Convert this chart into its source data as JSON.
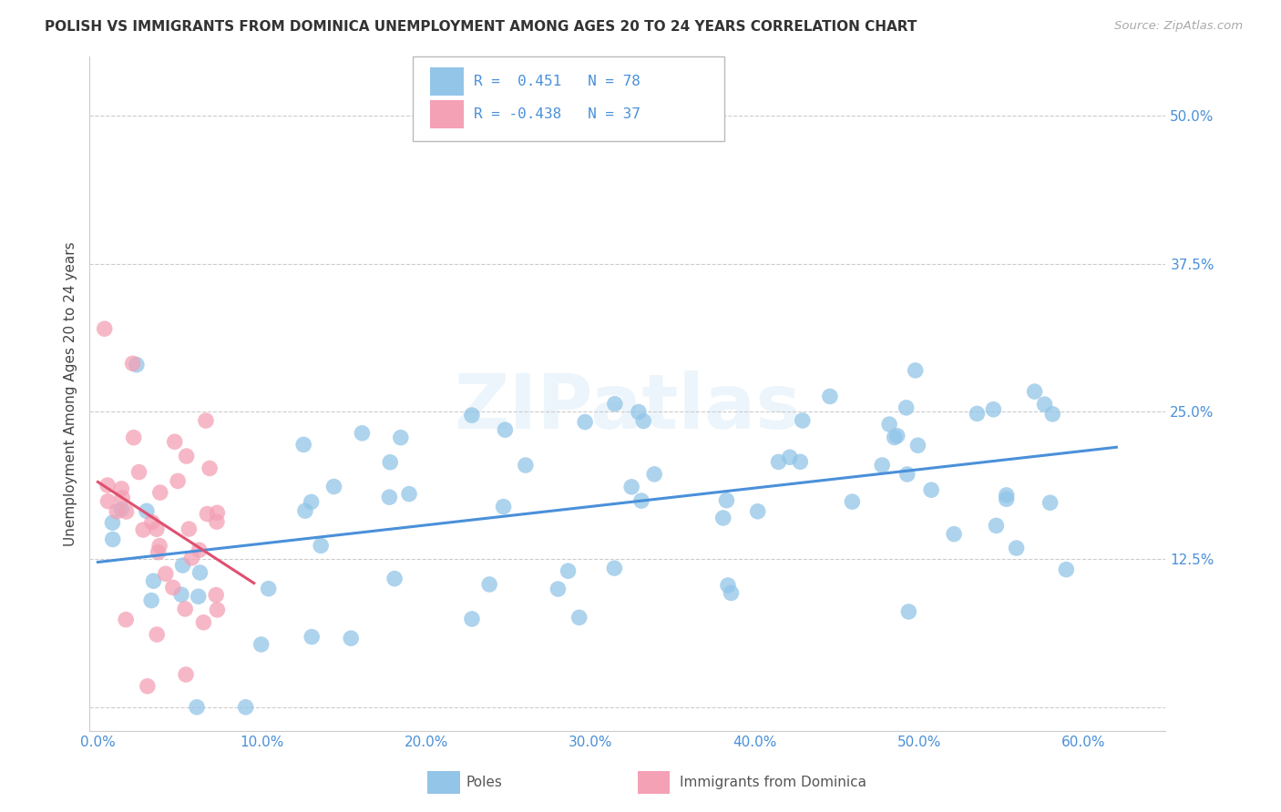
{
  "title": "POLISH VS IMMIGRANTS FROM DOMINICA UNEMPLOYMENT AMONG AGES 20 TO 24 YEARS CORRELATION CHART",
  "source": "Source: ZipAtlas.com",
  "ylabel": "Unemployment Among Ages 20 to 24 years",
  "ylim": [
    -0.02,
    0.55
  ],
  "xlim": [
    -0.005,
    0.65
  ],
  "poles_R": 0.451,
  "poles_N": 78,
  "dom_R": -0.438,
  "dom_N": 37,
  "poles_color": "#92C5E8",
  "poles_edge_color": "#92C5E8",
  "poles_line_color": "#4A90D9",
  "dom_color": "#F4A0B5",
  "dom_edge_color": "#F4A0B5",
  "dom_line_color": "#E05070",
  "watermark": "ZIPatlas",
  "legend_label_poles": "Poles",
  "legend_label_dom": "Immigrants from Dominica",
  "tick_color": "#4A90D9",
  "grid_color": "#cccccc"
}
